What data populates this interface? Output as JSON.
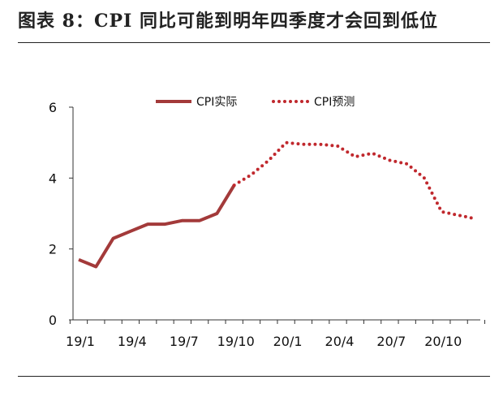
{
  "header": {
    "title": "图表 8：CPI 同比可能到明年四季度才会回到低位"
  },
  "chart_data": {
    "type": "line",
    "title": "",
    "xlabel": "",
    "ylabel": "",
    "ylim": [
      0,
      6
    ],
    "yticks": [
      "0",
      "2",
      "4",
      "6"
    ],
    "x_tick_labels": [
      "19/1",
      "19/4",
      "19/7",
      "19/10",
      "20/1",
      "20/4",
      "20/7",
      "20/10"
    ],
    "x": [
      "19/1",
      "19/2",
      "19/3",
      "19/4",
      "19/5",
      "19/6",
      "19/7",
      "19/8",
      "19/9",
      "19/10",
      "19/11",
      "19/12",
      "20/1",
      "20/2",
      "20/3",
      "20/4",
      "20/5",
      "20/6",
      "20/7",
      "20/8",
      "20/9",
      "20/10",
      "20/11",
      "20/12"
    ],
    "grid": false,
    "legend_position": "top",
    "series": [
      {
        "name": "CPI实际",
        "style": "solid",
        "color": "#a33a3a",
        "values": [
          1.7,
          1.5,
          2.3,
          2.5,
          2.7,
          2.7,
          2.8,
          2.8,
          3.0,
          3.8,
          null,
          null,
          null,
          null,
          null,
          null,
          null,
          null,
          null,
          null,
          null,
          null,
          null,
          null
        ]
      },
      {
        "name": "CPI预测",
        "style": "dotted",
        "color": "#c0282d",
        "values": [
          null,
          null,
          null,
          null,
          null,
          null,
          null,
          null,
          null,
          3.8,
          4.1,
          4.5,
          5.0,
          4.95,
          4.95,
          4.9,
          4.6,
          4.7,
          4.5,
          4.4,
          4.0,
          3.05,
          2.95,
          2.85
        ]
      }
    ]
  }
}
